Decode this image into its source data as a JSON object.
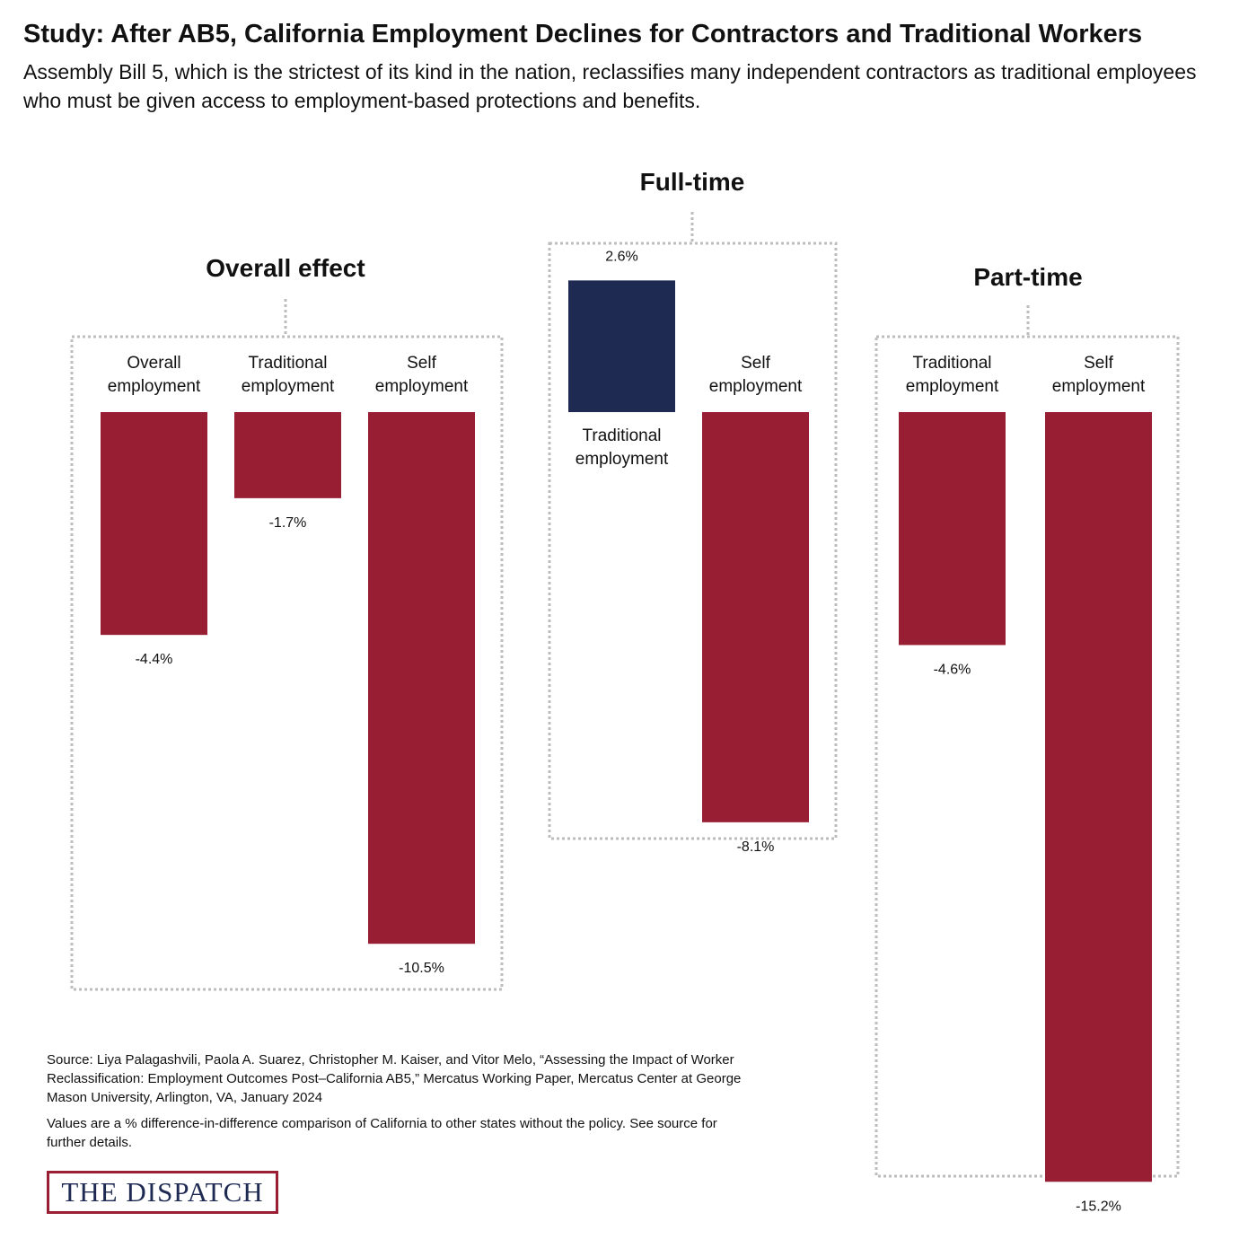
{
  "header": {
    "title": "Study: After AB5, California Employment Declines for Contractors and Traditional Workers",
    "subtitle": "Assembly Bill 5, which is the strictest of its kind in the nation, reclassifies many independent contractors as traditional employees who must be given access to employment-based protections and benefits."
  },
  "chart_data": {
    "type": "bar",
    "unit": "%",
    "colors": {
      "positive": "#1e2a52",
      "negative": "#981e34",
      "frame": "#bdbdbd"
    },
    "groups": [
      {
        "title": "Overall effect",
        "bars": [
          {
            "label": [
              "Overall",
              "employment"
            ],
            "value": -4.4,
            "value_label": "-4.4%"
          },
          {
            "label": [
              "Traditional",
              "employment"
            ],
            "value": -1.7,
            "value_label": "-1.7%"
          },
          {
            "label": [
              "Self",
              "employment"
            ],
            "value": -10.5,
            "value_label": "-10.5%"
          }
        ]
      },
      {
        "title": "Full-time",
        "bars": [
          {
            "label": [
              "Traditional",
              "employment"
            ],
            "value": 2.6,
            "value_label": "2.6%"
          },
          {
            "label": [
              "Self",
              "employment"
            ],
            "value": -8.1,
            "value_label": "-8.1%"
          }
        ]
      },
      {
        "title": "Part-time",
        "bars": [
          {
            "label": [
              "Traditional",
              "employment"
            ],
            "value": -4.6,
            "value_label": "-4.6%"
          },
          {
            "label": [
              "Self",
              "employment"
            ],
            "value": -15.2,
            "value_label": "-15.2%"
          }
        ]
      }
    ]
  },
  "footer": {
    "source": "Source: Liya Palagashvili, Paola A. Suarez, Christopher M. Kaiser, and Vitor Melo, “Assessing the Impact of Worker Reclassification: Employment Outcomes Post–California AB5,” Mercatus Working Paper, Mercatus Center at George Mason University, Arlington, VA, January 2024",
    "notes": "Values are a % difference-in-difference comparison of California to other states without the policy. See source for further details.",
    "logo": "THE DISPATCH"
  }
}
